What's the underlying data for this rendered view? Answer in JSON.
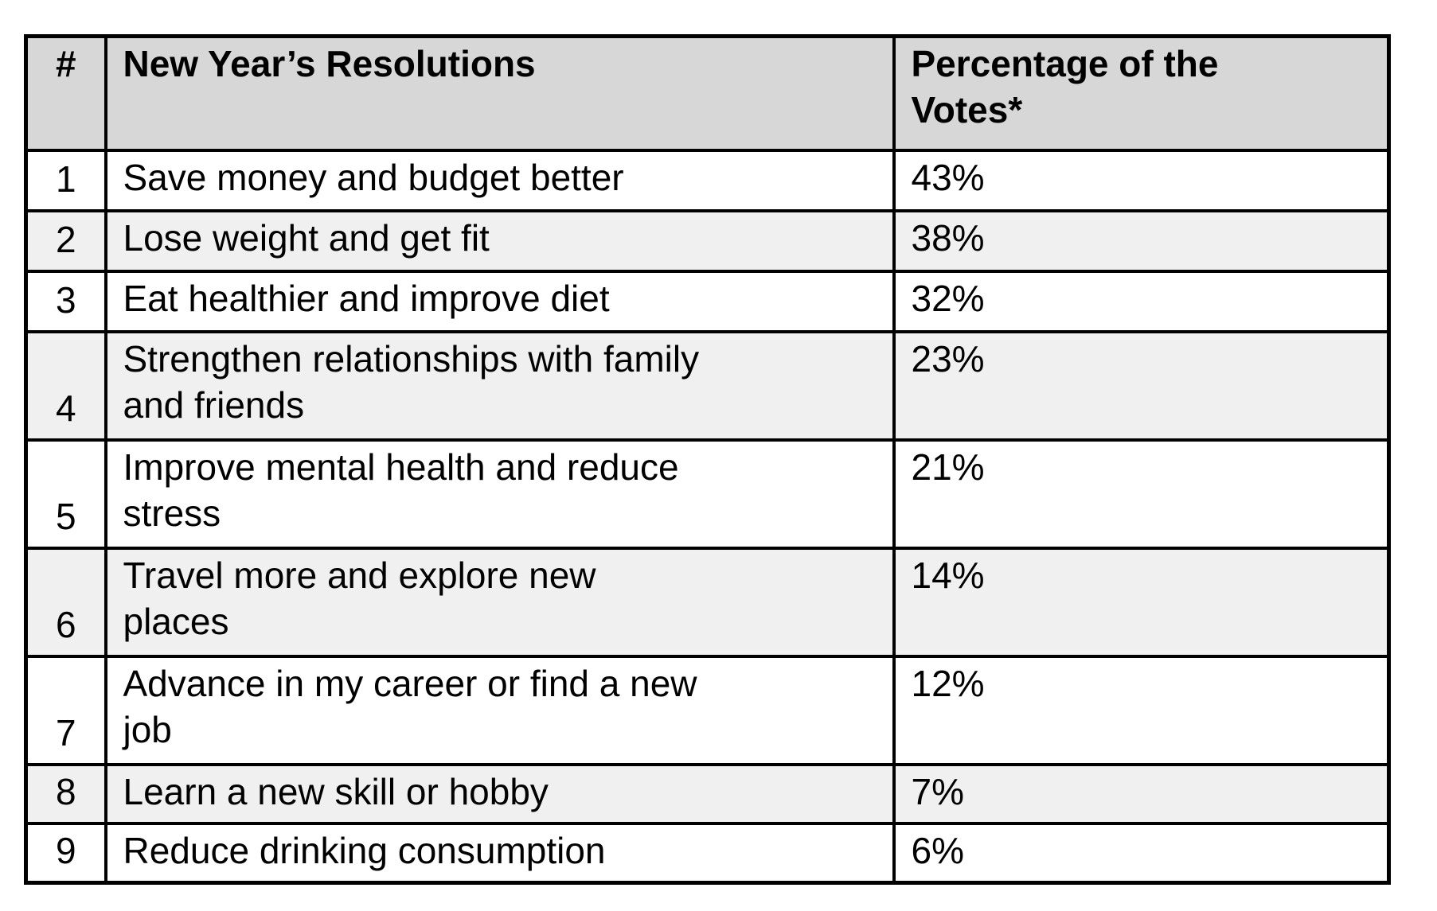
{
  "table": {
    "columns": {
      "num_label": "#",
      "resolution_label": "New Year’s Resolutions",
      "percentage_label": "Percentage of the\nVotes*"
    },
    "rows": [
      {
        "num": "1",
        "resolution": "Save money and budget better",
        "percentage": "43%"
      },
      {
        "num": "2",
        "resolution": "Lose weight and get fit",
        "percentage": "38%"
      },
      {
        "num": "3",
        "resolution": "Eat healthier and improve diet",
        "percentage": "32%"
      },
      {
        "num": "4",
        "resolution": "Strengthen relationships with family\nand friends",
        "percentage": "23%"
      },
      {
        "num": "5",
        "resolution": "Improve mental health and reduce\nstress",
        "percentage": "21%"
      },
      {
        "num": "6",
        "resolution": "Travel more and explore new\nplaces",
        "percentage": "14%"
      },
      {
        "num": "7",
        "resolution": "Advance in my career or find a new\njob",
        "percentage": "12%"
      },
      {
        "num": "8",
        "resolution": "Learn a new skill or hobby",
        "percentage": "7%"
      },
      {
        "num": "9",
        "resolution": "Reduce drinking consumption",
        "percentage": "6%"
      }
    ]
  },
  "colors": {
    "header_bg": "#d7d7d7",
    "alt_row_bg": "#f0f0f0",
    "border": "#000000"
  }
}
